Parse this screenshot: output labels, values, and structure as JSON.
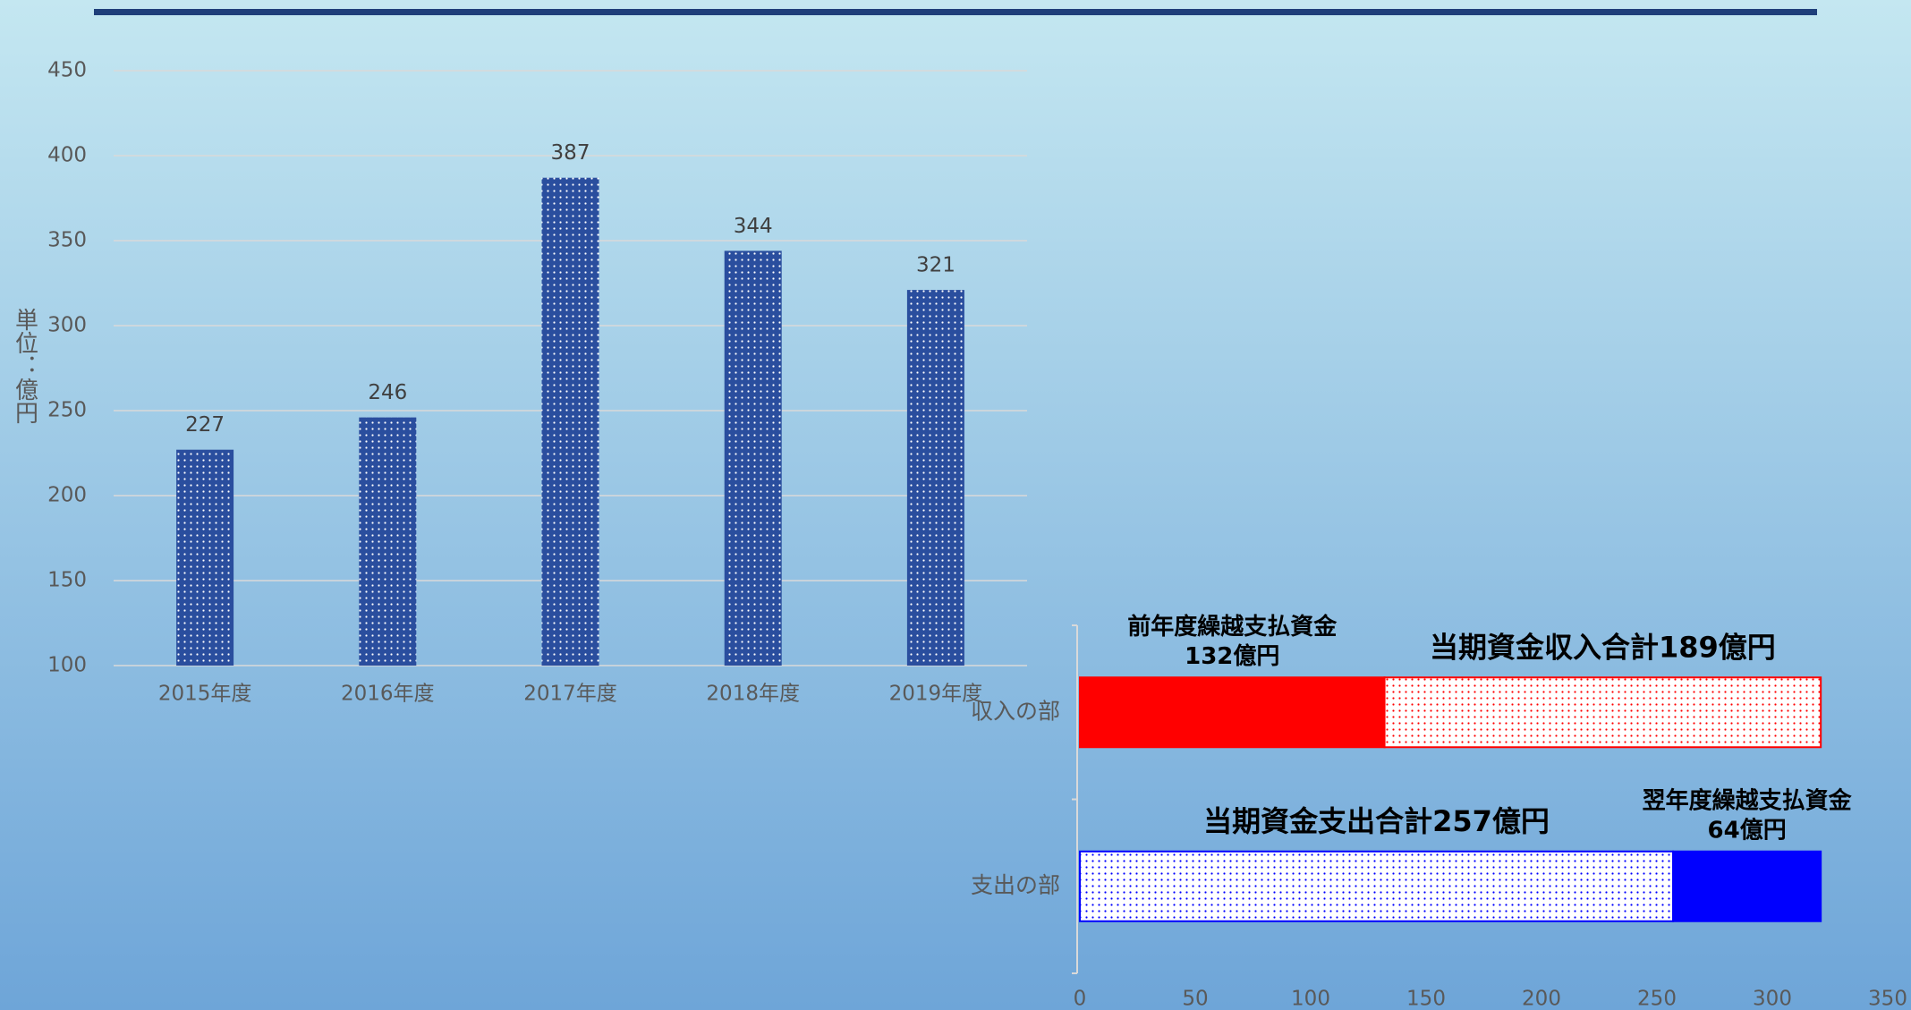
{
  "chart_data": [
    {
      "type": "bar",
      "y_label": "単位：億円",
      "categories": [
        "2015年度",
        "2016年度",
        "2017年度",
        "2018年度",
        "2019年度"
      ],
      "values": [
        227,
        246,
        387,
        344,
        321
      ],
      "color": "#2a4e9e",
      "pattern": "dots",
      "ylim": [
        100,
        450
      ],
      "yticks": [
        100,
        150,
        200,
        250,
        300,
        350,
        400,
        450
      ],
      "grid": true
    },
    {
      "type": "stacked-barh",
      "categories": [
        "収入の部",
        "支出の部"
      ],
      "series": [
        {
          "name": "前年度繰越支払資金",
          "color": "#ff0000",
          "pattern": "solid",
          "values": [
            132,
            null
          ],
          "value_labels": [
            "132億円",
            null
          ]
        },
        {
          "color": "#ff0000",
          "pattern": "dots",
          "values": [
            189,
            null
          ],
          "value_labels": [
            "当期資金収入合計189億円",
            null
          ]
        },
        {
          "color": "#0000ff",
          "pattern": "dots",
          "values": [
            null,
            257
          ],
          "value_labels": [
            null,
            "当期資金支出合計257億円"
          ]
        },
        {
          "name": "翌年度繰越支払資金",
          "color": "#0000ff",
          "pattern": "solid",
          "values": [
            null,
            64
          ],
          "value_labels": [
            null,
            "64億円"
          ]
        }
      ],
      "xlim": [
        0,
        350
      ],
      "xticks": [
        0,
        50,
        100,
        150,
        200,
        250,
        300,
        350
      ]
    }
  ]
}
